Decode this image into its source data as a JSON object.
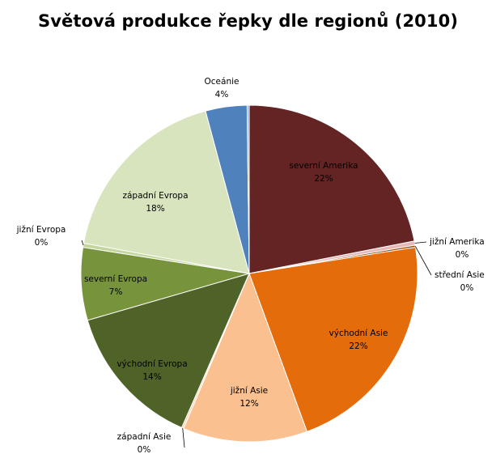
{
  "chart_data": {
    "type": "pie",
    "title": "Světová produkce řepky dle regionů (2010)",
    "slices": [
      {
        "name": "severní Amerika",
        "value": 22,
        "label": "22%",
        "color": "#632423"
      },
      {
        "name": "jižní Amerika",
        "value": 0.4,
        "label": "0%",
        "color": "#E6B9B8"
      },
      {
        "name": "střední Asie",
        "value": 0.2,
        "label": "0%",
        "color": "#984807"
      },
      {
        "name": "východní Asie",
        "value": 22,
        "label": "22%",
        "color": "#E46C0A"
      },
      {
        "name": "jižní Asie",
        "value": 12,
        "label": "12%",
        "color": "#FAC090"
      },
      {
        "name": "západní Asie",
        "value": 0.2,
        "label": "0%",
        "color": "#FCD5B5"
      },
      {
        "name": "východní Evropa",
        "value": 14,
        "label": "14%",
        "color": "#4F6228"
      },
      {
        "name": "severní Evropa",
        "value": 7,
        "label": "7%",
        "color": "#77933C"
      },
      {
        "name": "jižní Evropa",
        "value": 0.4,
        "label": "0%",
        "color": "#C3D69B"
      },
      {
        "name": "západní  Evropa",
        "value": 18,
        "label": "18%",
        "color": "#D7E4BD"
      },
      {
        "name": "Oceánie",
        "value": 4,
        "label": "4%",
        "color": "#4F81BD"
      },
      {
        "name": "",
        "value": 0.2,
        "label": "",
        "color": "#95B3D7"
      }
    ]
  }
}
